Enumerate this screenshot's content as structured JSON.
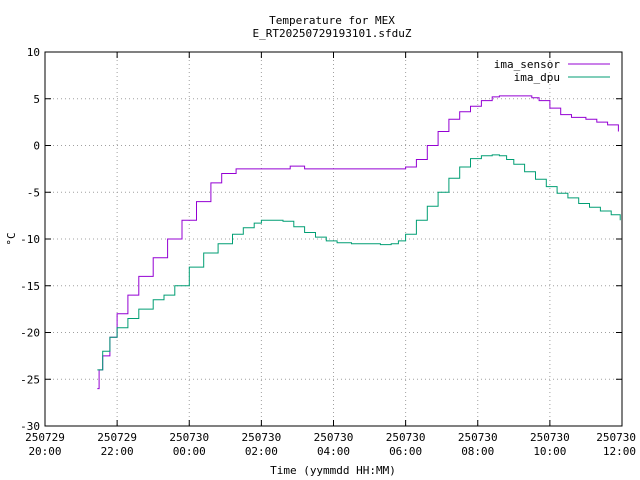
{
  "chart_data": {
    "type": "line",
    "title": "Temperature for MEX",
    "subtitle": "E_RT20250729193101.sfduZ",
    "xlabel": "Time (yymmdd HH:MM)",
    "ylabel": "°C",
    "xlim": [
      20,
      36
    ],
    "ylim": [
      -30,
      10
    ],
    "grid": true,
    "legend_position": "top-right",
    "yticks": [
      {
        "value": -30,
        "label": "-30"
      },
      {
        "value": -25,
        "label": "-25"
      },
      {
        "value": -20,
        "label": "-20"
      },
      {
        "value": -15,
        "label": "-15"
      },
      {
        "value": -10,
        "label": "-10"
      },
      {
        "value": -5,
        "label": "-5"
      },
      {
        "value": 0,
        "label": "0"
      },
      {
        "value": 5,
        "label": "5"
      },
      {
        "value": 10,
        "label": "10"
      }
    ],
    "xticks": [
      {
        "value": 20,
        "date": "250729",
        "time": "20:00"
      },
      {
        "value": 22,
        "date": "250729",
        "time": "22:00"
      },
      {
        "value": 24,
        "date": "250730",
        "time": "00:00"
      },
      {
        "value": 26,
        "date": "250730",
        "time": "02:00"
      },
      {
        "value": 28,
        "date": "250730",
        "time": "04:00"
      },
      {
        "value": 30,
        "date": "250730",
        "time": "06:00"
      },
      {
        "value": 32,
        "date": "250730",
        "time": "08:00"
      },
      {
        "value": 34,
        "date": "250730",
        "time": "10:00"
      },
      {
        "value": 36,
        "date": "250730",
        "time": "12:00"
      }
    ],
    "series": [
      {
        "name": "ima_sensor",
        "color": "#9400d3",
        "x": [
          21.45,
          21.5,
          21.6,
          21.8,
          22.0,
          22.3,
          22.6,
          23.0,
          23.4,
          23.8,
          24.2,
          24.6,
          24.9,
          25.3,
          25.6,
          25.9,
          26.2,
          26.5,
          26.7,
          26.8,
          27.0,
          27.2,
          27.5,
          28.0,
          28.5,
          29.0,
          29.5,
          29.8,
          30.0,
          30.3,
          30.6,
          30.9,
          31.2,
          31.5,
          31.8,
          32.1,
          32.4,
          32.6,
          32.8,
          33.0,
          33.3,
          33.5,
          33.7,
          34.0,
          34.3,
          34.6,
          35.0,
          35.3,
          35.6,
          35.9
        ],
        "y": [
          -26,
          -24,
          -22.5,
          -20.5,
          -18,
          -16,
          -14,
          -12,
          -10,
          -8,
          -6,
          -4,
          -3,
          -2.5,
          -2.5,
          -2.5,
          -2.5,
          -2.5,
          -2.5,
          -2.2,
          -2.2,
          -2.5,
          -2.5,
          -2.5,
          -2.5,
          -2.5,
          -2.5,
          -2.5,
          -2.3,
          -1.5,
          0,
          1.5,
          2.8,
          3.6,
          4.2,
          4.8,
          5.2,
          5.3,
          5.3,
          5.3,
          5.3,
          5.1,
          4.8,
          4.0,
          3.3,
          3.0,
          2.8,
          2.5,
          2.2,
          1.5
        ]
      },
      {
        "name": "ima_dpu",
        "color": "#009e73",
        "x": [
          21.45,
          21.6,
          21.8,
          22.0,
          22.3,
          22.6,
          23.0,
          23.3,
          23.6,
          24.0,
          24.4,
          24.8,
          25.2,
          25.5,
          25.8,
          26.0,
          26.3,
          26.6,
          26.9,
          27.2,
          27.5,
          27.8,
          28.1,
          28.5,
          28.9,
          29.3,
          29.6,
          29.8,
          30.0,
          30.3,
          30.6,
          30.9,
          31.2,
          31.5,
          31.8,
          32.1,
          32.4,
          32.6,
          32.8,
          33.0,
          33.3,
          33.6,
          33.9,
          34.2,
          34.5,
          34.8,
          35.1,
          35.4,
          35.7,
          35.95
        ],
        "y": [
          -24,
          -22,
          -20.5,
          -19.5,
          -18.5,
          -17.5,
          -16.5,
          -16,
          -15,
          -13,
          -11.5,
          -10.5,
          -9.5,
          -8.8,
          -8.3,
          -8,
          -8,
          -8.1,
          -8.7,
          -9.3,
          -9.8,
          -10.2,
          -10.4,
          -10.5,
          -10.5,
          -10.6,
          -10.5,
          -10.2,
          -9.5,
          -8,
          -6.5,
          -5,
          -3.5,
          -2.3,
          -1.4,
          -1.1,
          -1.0,
          -1.1,
          -1.5,
          -2.0,
          -2.8,
          -3.6,
          -4.4,
          -5.1,
          -5.6,
          -6.2,
          -6.6,
          -7.0,
          -7.4,
          -8.0
        ]
      }
    ]
  }
}
